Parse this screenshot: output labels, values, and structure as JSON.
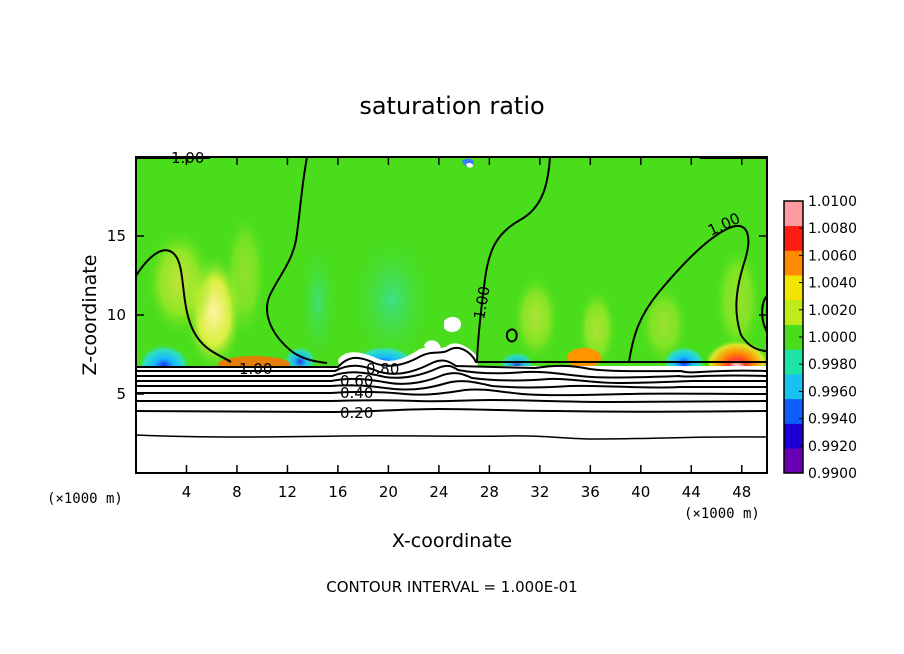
{
  "chart_data": {
    "type": "heatmap",
    "title": "saturation ratio",
    "xlabel": "X-coordinate",
    "ylabel": "Z-coordinate",
    "x_unit": "(×1000 m)",
    "x_unit_right": "(×1000 m)",
    "xlim": [
      0,
      50
    ],
    "ylim": [
      0,
      20
    ],
    "x_ticks": [
      4,
      8,
      12,
      16,
      20,
      24,
      28,
      32,
      36,
      40,
      44,
      48
    ],
    "y_ticks": [
      5,
      10,
      15
    ],
    "x_tick_labels": [
      "4",
      "8",
      "12",
      "16",
      "20",
      "24",
      "28",
      "32",
      "36",
      "40",
      "44",
      "48"
    ],
    "y_tick_labels": [
      "5",
      "10",
      "15"
    ],
    "colorbar": {
      "levels": [
        0.99,
        0.992,
        0.994,
        0.996,
        0.998,
        1.0,
        1.002,
        1.004,
        1.006,
        1.008,
        1.01
      ],
      "labels": [
        "0.9900",
        "0.9920",
        "0.9940",
        "0.9960",
        "0.9980",
        "1.0000",
        "1.0020",
        "1.0040",
        "1.0060",
        "1.0080",
        "1.0100"
      ],
      "colors": [
        "#6a00b5",
        "#1a00d6",
        "#0f5cff",
        "#17c2ee",
        "#1ee4a6",
        "#49dd1c",
        "#bfeb1a",
        "#f2e400",
        "#ff8a00",
        "#ff1c12",
        "#ff9aa3"
      ]
    },
    "contour_labels": [
      {
        "text": "1.00",
        "x": 1.4,
        "z": 19.7
      },
      {
        "text": "1.00",
        "x": 8.8,
        "z": 6.6
      },
      {
        "text": "0.80",
        "x": 18.4,
        "z": 6.5
      },
      {
        "text": "0.60",
        "x": 16.4,
        "z": 5.6
      },
      {
        "text": "0.40",
        "x": 16.4,
        "z": 4.8
      },
      {
        "text": "0.20",
        "x": 16.4,
        "z": 3.5
      },
      {
        "text": "1.00",
        "x": 27.6,
        "z": 10.4
      },
      {
        "text": "1.00",
        "x": 43.2,
        "z": 15.4
      }
    ],
    "contour_interval_text": "CONTOUR INTERVAL = 1.000E-01"
  }
}
